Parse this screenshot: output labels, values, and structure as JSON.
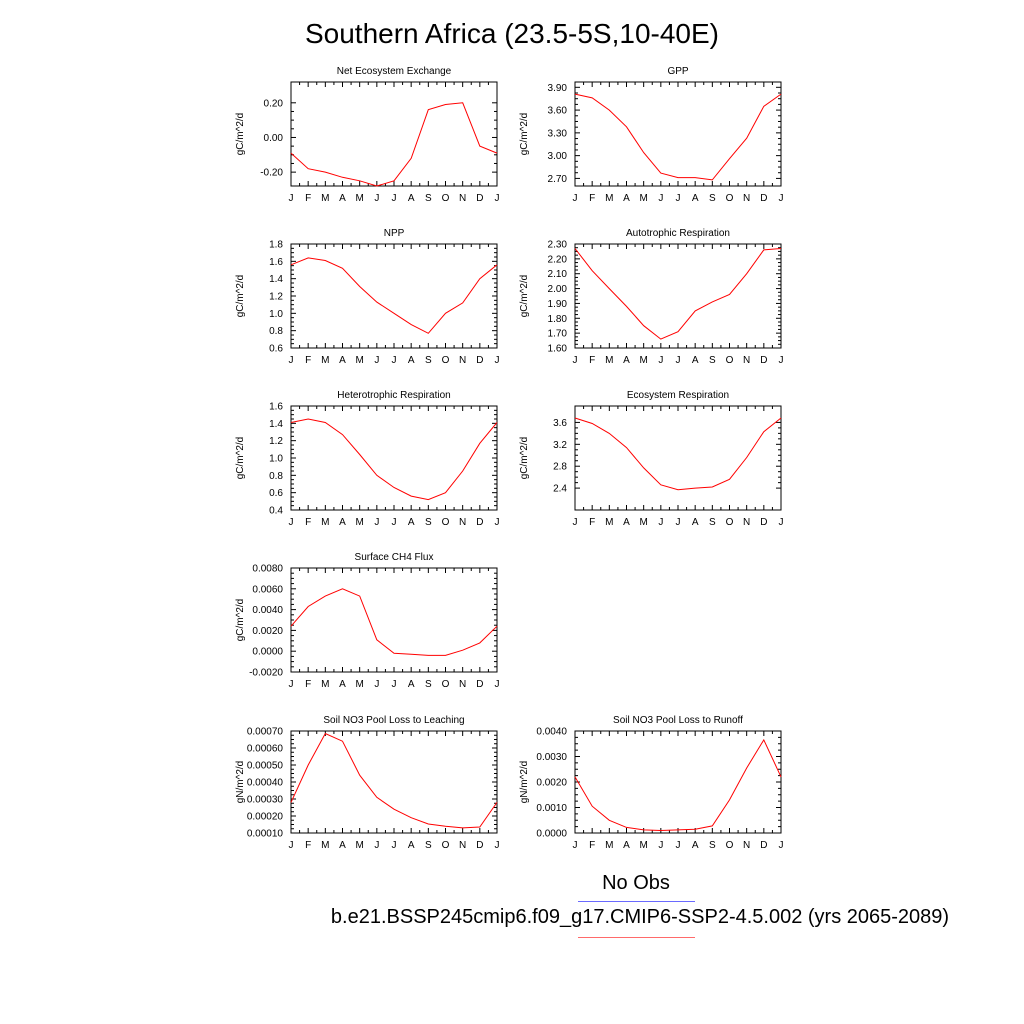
{
  "page": {
    "title": "Southern Africa (23.5-5S,10-40E)",
    "legend": [
      {
        "label": "No Obs",
        "color": "#6a6aff"
      },
      {
        "label": "b.e21.BSSP245cmip6.f09_g17.CMIP6-SSP2-4.5.002 (yrs 2065-2089)",
        "color": "#ff6a6a"
      }
    ]
  },
  "chart_data": [
    {
      "type": "line",
      "title": "Net Ecosystem Exchange",
      "ylabel": "gC/m^2/d",
      "categories": [
        "J",
        "F",
        "M",
        "A",
        "M",
        "J",
        "J",
        "A",
        "S",
        "O",
        "N",
        "D",
        "J"
      ],
      "ylim": [
        -0.28,
        0.32
      ],
      "yticks": [
        -0.2,
        0.0,
        0.2
      ],
      "ytick_labels": [
        "-0.20",
        "0.00",
        "0.20"
      ],
      "series": [
        {
          "color": "#ff0000",
          "values": [
            -0.09,
            -0.18,
            -0.2,
            -0.23,
            -0.25,
            -0.28,
            -0.25,
            -0.12,
            0.16,
            0.19,
            0.2,
            -0.05,
            -0.09
          ]
        }
      ]
    },
    {
      "type": "line",
      "title": "GPP",
      "ylabel": "gC/m^2/d",
      "categories": [
        "J",
        "F",
        "M",
        "A",
        "M",
        "J",
        "J",
        "A",
        "S",
        "O",
        "N",
        "D",
        "J"
      ],
      "ylim": [
        2.6,
        3.97
      ],
      "yticks": [
        2.7,
        3.0,
        3.3,
        3.6,
        3.9
      ],
      "ytick_labels": [
        "2.70",
        "3.00",
        "3.30",
        "3.60",
        "3.90"
      ],
      "series": [
        {
          "color": "#ff0000",
          "values": [
            3.81,
            3.76,
            3.6,
            3.38,
            3.04,
            2.77,
            2.71,
            2.71,
            2.68,
            2.96,
            3.23,
            3.65,
            3.81
          ]
        }
      ]
    },
    {
      "type": "line",
      "title": "NPP",
      "ylabel": "gC/m^2/d",
      "categories": [
        "J",
        "F",
        "M",
        "A",
        "M",
        "J",
        "J",
        "A",
        "S",
        "O",
        "N",
        "D",
        "J"
      ],
      "ylim": [
        0.6,
        1.8
      ],
      "yticks": [
        0.6,
        0.8,
        1.0,
        1.2,
        1.4,
        1.6,
        1.8
      ],
      "ytick_labels": [
        "0.6",
        "0.8",
        "1.0",
        "1.2",
        "1.4",
        "1.6",
        "1.8"
      ],
      "series": [
        {
          "color": "#ff0000",
          "values": [
            1.56,
            1.64,
            1.61,
            1.52,
            1.31,
            1.13,
            1.0,
            0.87,
            0.77,
            1.0,
            1.12,
            1.4,
            1.56
          ]
        }
      ]
    },
    {
      "type": "line",
      "title": "Autotrophic Respiration",
      "ylabel": "gC/m^2/d",
      "categories": [
        "J",
        "F",
        "M",
        "A",
        "M",
        "J",
        "J",
        "A",
        "S",
        "O",
        "N",
        "D",
        "J"
      ],
      "ylim": [
        1.6,
        2.3
      ],
      "yticks": [
        1.6,
        1.7,
        1.8,
        1.9,
        2.0,
        2.1,
        2.2,
        2.3
      ],
      "ytick_labels": [
        "1.60",
        "1.70",
        "1.80",
        "1.90",
        "2.00",
        "2.10",
        "2.20",
        "2.30"
      ],
      "series": [
        {
          "color": "#ff0000",
          "values": [
            2.27,
            2.12,
            2.0,
            1.88,
            1.75,
            1.66,
            1.71,
            1.85,
            1.91,
            1.96,
            2.1,
            2.26,
            2.27
          ]
        }
      ]
    },
    {
      "type": "line",
      "title": "Heterotrophic Respiration",
      "ylabel": "gC/m^2/d",
      "categories": [
        "J",
        "F",
        "M",
        "A",
        "M",
        "J",
        "J",
        "A",
        "S",
        "O",
        "N",
        "D",
        "J"
      ],
      "ylim": [
        0.4,
        1.6
      ],
      "yticks": [
        0.4,
        0.6,
        0.8,
        1.0,
        1.2,
        1.4,
        1.6
      ],
      "ytick_labels": [
        "0.4",
        "0.6",
        "0.8",
        "1.0",
        "1.2",
        "1.4",
        "1.6"
      ],
      "series": [
        {
          "color": "#ff0000",
          "values": [
            1.41,
            1.45,
            1.41,
            1.27,
            1.04,
            0.8,
            0.66,
            0.56,
            0.52,
            0.6,
            0.85,
            1.17,
            1.41
          ]
        }
      ]
    },
    {
      "type": "line",
      "title": "Ecosystem Respiration",
      "ylabel": "gC/m^2/d",
      "categories": [
        "J",
        "F",
        "M",
        "A",
        "M",
        "J",
        "J",
        "A",
        "S",
        "O",
        "N",
        "D",
        "J"
      ],
      "ylim": [
        2.0,
        3.9
      ],
      "yticks": [
        2.4,
        2.8,
        3.2,
        3.6
      ],
      "ytick_labels": [
        "2.4",
        "2.8",
        "3.2",
        "3.6"
      ],
      "series": [
        {
          "color": "#ff0000",
          "values": [
            3.68,
            3.58,
            3.4,
            3.14,
            2.77,
            2.46,
            2.37,
            2.4,
            2.42,
            2.56,
            2.96,
            3.43,
            3.68
          ]
        }
      ]
    },
    {
      "type": "line",
      "title": "Surface CH4 Flux",
      "ylabel": "gC/m^2/d",
      "categories": [
        "J",
        "F",
        "M",
        "A",
        "M",
        "J",
        "J",
        "A",
        "S",
        "O",
        "N",
        "D",
        "J"
      ],
      "ylim": [
        -0.002,
        0.008
      ],
      "yticks": [
        -0.002,
        0.0,
        0.002,
        0.004,
        0.006,
        0.008
      ],
      "ytick_labels": [
        "-0.0020",
        "0.0000",
        "0.0020",
        "0.0040",
        "0.0060",
        "0.0080"
      ],
      "series": [
        {
          "color": "#ff0000",
          "values": [
            0.0024,
            0.0043,
            0.0053,
            0.006,
            0.0053,
            0.0011,
            -0.0002,
            -0.0003,
            -0.0004,
            -0.0004,
            0.0001,
            0.0008,
            0.0024
          ]
        }
      ]
    },
    {
      "type": "line",
      "title": "Soil NO3 Pool Loss to Leaching",
      "ylabel": "gN/m^2/d",
      "categories": [
        "J",
        "F",
        "M",
        "A",
        "M",
        "J",
        "J",
        "A",
        "S",
        "O",
        "N",
        "D",
        "J"
      ],
      "ylim": [
        0.0001,
        0.0007
      ],
      "yticks": [
        0.0001,
        0.0002,
        0.0003,
        0.0004,
        0.0005,
        0.0006,
        0.0007
      ],
      "ytick_labels": [
        "0.00010",
        "0.00020",
        "0.00030",
        "0.00040",
        "0.00050",
        "0.00060",
        "0.00070"
      ],
      "series": [
        {
          "color": "#ff0000",
          "values": [
            0.00028,
            0.0005,
            0.000685,
            0.00064,
            0.00044,
            0.00031,
            0.00024,
            0.00019,
            0.000153,
            0.00014,
            0.00013,
            0.000135,
            0.00028
          ]
        }
      ]
    },
    {
      "type": "line",
      "title": "Soil NO3 Pool Loss to Runoff",
      "ylabel": "gN/m^2/d",
      "categories": [
        "J",
        "F",
        "M",
        "A",
        "M",
        "J",
        "J",
        "A",
        "S",
        "O",
        "N",
        "D",
        "J"
      ],
      "ylim": [
        0.0,
        0.004
      ],
      "yticks": [
        0.0,
        0.001,
        0.002,
        0.003,
        0.004
      ],
      "ytick_labels": [
        "0.0000",
        "0.0010",
        "0.0020",
        "0.0030",
        "0.0040"
      ],
      "series": [
        {
          "color": "#ff0000",
          "values": [
            0.0022,
            0.00105,
            0.0005,
            0.00022,
            0.00012,
            0.0001,
            0.00012,
            0.00015,
            0.00028,
            0.0013,
            0.00255,
            0.00365,
            0.0022
          ]
        }
      ]
    }
  ]
}
